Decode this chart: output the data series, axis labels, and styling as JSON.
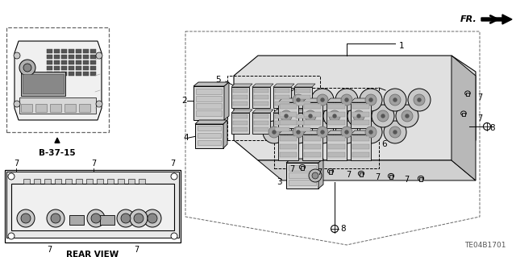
{
  "bg_color": "#ffffff",
  "fig_width": 6.4,
  "fig_height": 3.19,
  "dpi": 100,
  "diagram_id": "TE04B1701",
  "ref_label": "B-37-15",
  "rear_view_label": "REAR VIEW",
  "fr_label": "FR.",
  "line_color": "#000000",
  "text_color": "#000000",
  "dark_gray": "#333333",
  "mid_gray": "#888888",
  "light_gray": "#cccccc",
  "dashed_color": "#666666"
}
